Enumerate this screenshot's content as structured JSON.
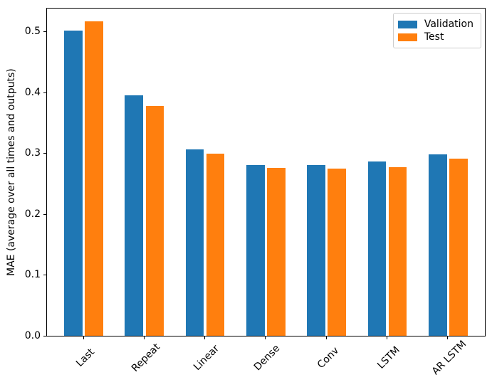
{
  "chart_data": {
    "type": "bar",
    "title": "",
    "xlabel": "",
    "ylabel": "MAE (average over all times and outputs)",
    "categories": [
      "Last",
      "Repeat",
      "Linear",
      "Dense",
      "Conv",
      "LSTM",
      "AR LSTM"
    ],
    "series": [
      {
        "name": "Validation",
        "color": "#1f77b4",
        "values": [
          0.501,
          0.395,
          0.306,
          0.28,
          0.28,
          0.286,
          0.298
        ]
      },
      {
        "name": "Test",
        "color": "#ff7f0e",
        "values": [
          0.516,
          0.377,
          0.299,
          0.276,
          0.274,
          0.277,
          0.291
        ]
      }
    ],
    "ylim": [
      0,
      0.5372
    ],
    "yticks": [
      0.0,
      0.1,
      0.2,
      0.3,
      0.4,
      0.5
    ],
    "ytick_labels": [
      "0.0",
      "0.1",
      "0.2",
      "0.3",
      "0.4",
      "0.5"
    ],
    "x_tick_rotation": 45,
    "grid": false,
    "legend_position": "upper right",
    "background_color": "#ffffff",
    "spine_color": "#000000"
  }
}
